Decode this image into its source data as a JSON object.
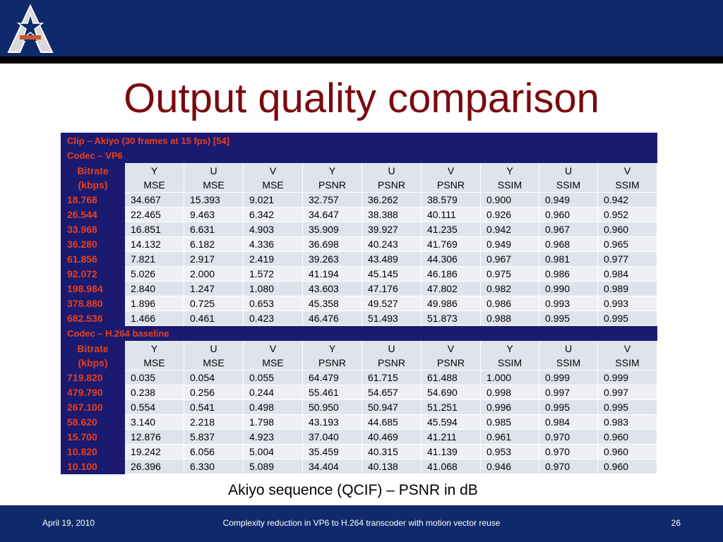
{
  "slide": {
    "title": "Output quality comparison",
    "caption": "Akiyo sequence (QCIF) – PSNR in dB",
    "footer": {
      "date": "April 19, 2010",
      "center": "Complexity reduction in VP6 to H.264 transcoder with motion vector  reuse",
      "page": "26"
    }
  },
  "table": {
    "clip_label": "Clip – Akiyo (30 frames at 15 fps) [54]",
    "header": {
      "bitrate": [
        "Bitrate",
        "(kbps)"
      ],
      "cols": [
        [
          "Y",
          "MSE"
        ],
        [
          "U",
          "MSE"
        ],
        [
          "V",
          "MSE"
        ],
        [
          "Y",
          "PSNR"
        ],
        [
          "U",
          "PSNR"
        ],
        [
          "V",
          "PSNR"
        ],
        [
          "Y",
          "SSIM"
        ],
        [
          "U",
          "SSIM"
        ],
        [
          "V",
          "SSIM"
        ]
      ]
    },
    "sections": [
      {
        "label": "Codec – VP6",
        "rows": [
          [
            "18.768",
            "34.667",
            "15.393",
            "9.021",
            "32.757",
            "36.262",
            "38.579",
            "0.900",
            "0.949",
            "0.942"
          ],
          [
            "26.544",
            "22.465",
            "9.463",
            "6.342",
            "34.647",
            "38.388",
            "40.111",
            "0.926",
            "0.960",
            "0.952"
          ],
          [
            "33.968",
            "16.851",
            "6.631",
            "4.903",
            "35.909",
            "39.927",
            "41.235",
            "0.942",
            "0.967",
            "0.960"
          ],
          [
            "36.280",
            "14.132",
            "6.182",
            "4.336",
            "36.698",
            "40.243",
            "41.769",
            "0.949",
            "0.968",
            "0.965"
          ],
          [
            "61.856",
            "7.821",
            "2.917",
            "2.419",
            "39.263",
            "43.489",
            "44.306",
            "0.967",
            "0.981",
            "0.977"
          ],
          [
            "92.072",
            "5.026",
            "2.000",
            "1.572",
            "41.194",
            "45.145",
            "46.186",
            "0.975",
            "0.986",
            "0.984"
          ],
          [
            "198.984",
            "2.840",
            "1.247",
            "1.080",
            "43.603",
            "47.176",
            "47.802",
            "0.982",
            "0.990",
            "0.989"
          ],
          [
            "378.880",
            "1.896",
            "0.725",
            "0.653",
            "45.358",
            "49.527",
            "49.986",
            "0.986",
            "0.993",
            "0.993"
          ],
          [
            "682.536",
            "1.466",
            "0.461",
            "0.423",
            "46.476",
            "51.493",
            "51.873",
            "0.988",
            "0.995",
            "0.995"
          ]
        ]
      },
      {
        "label": "Codec – H.264 baseline",
        "rows": [
          [
            "719.820",
            "0.035",
            "0.054",
            "0.055",
            "64.479",
            "61.715",
            "61.488",
            "1.000",
            "0.999",
            "0.999"
          ],
          [
            "479.790",
            "0.238",
            "0.256",
            "0.244",
            "55.461",
            "54.657",
            "54.690",
            "0.998",
            "0.997",
            "0.997"
          ],
          [
            "267.100",
            "0.554",
            "0.541",
            "0.498",
            "50.950",
            "50.947",
            "51.251",
            "0.996",
            "0.995",
            "0.995"
          ],
          [
            "58.620",
            "3.140",
            "2.218",
            "1.798",
            "43.193",
            "44.685",
            "45.594",
            "0.985",
            "0.984",
            "0.983"
          ],
          [
            "15.700",
            "12.876",
            "5.837",
            "4.923",
            "37.040",
            "40.469",
            "41.211",
            "0.961",
            "0.970",
            "0.960"
          ],
          [
            "10.820",
            "19.242",
            "6.056",
            "5.004",
            "35.459",
            "40.315",
            "41.139",
            "0.953",
            "0.970",
            "0.960"
          ],
          [
            "10.100",
            "26.396",
            "6.330",
            "5.089",
            "34.404",
            "40.138",
            "41.068",
            "0.946",
            "0.970",
            "0.960"
          ]
        ]
      }
    ]
  },
  "colors": {
    "header_bar": "#0f2a6b",
    "title": "#7a0a10",
    "section_bg": "#1a1a70",
    "section_text": "#e8401c",
    "row_light": "#eef0f5",
    "row_dark": "#dfe3ec"
  },
  "icons": {
    "logo": "star-a-logo-icon"
  }
}
